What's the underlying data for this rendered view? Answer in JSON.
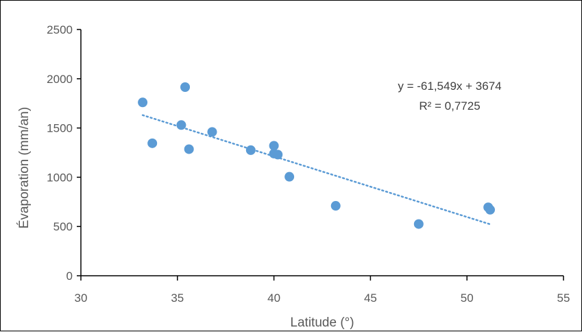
{
  "chart_data": {
    "type": "scatter",
    "title": "",
    "xlabel": "Latitude (°)",
    "ylabel": "Évaporation (mm/an)",
    "xlim": [
      30,
      55
    ],
    "ylim": [
      0,
      2500
    ],
    "xticks": [
      30,
      35,
      40,
      45,
      50,
      55
    ],
    "yticks": [
      0,
      500,
      1000,
      1500,
      2000,
      2500
    ],
    "xtick_labels": [
      "30",
      "35",
      "40",
      "45",
      "50",
      "55"
    ],
    "ytick_labels": [
      "0",
      "500",
      "1000",
      "1500",
      "2000",
      "2500"
    ],
    "grid": false,
    "legend": "none",
    "marker_color": "#5B9BD5",
    "trendline_color": "#5B9BD5",
    "series": [
      {
        "points": [
          {
            "x": 33.2,
            "y": 1760
          },
          {
            "x": 33.7,
            "y": 1345
          },
          {
            "x": 35.2,
            "y": 1530
          },
          {
            "x": 35.4,
            "y": 1915
          },
          {
            "x": 35.6,
            "y": 1285
          },
          {
            "x": 36.8,
            "y": 1460
          },
          {
            "x": 38.8,
            "y": 1275
          },
          {
            "x": 40.0,
            "y": 1320
          },
          {
            "x": 40.0,
            "y": 1240
          },
          {
            "x": 40.2,
            "y": 1230
          },
          {
            "x": 40.8,
            "y": 1005
          },
          {
            "x": 43.2,
            "y": 710
          },
          {
            "x": 47.5,
            "y": 525
          },
          {
            "x": 51.1,
            "y": 695
          },
          {
            "x": 51.2,
            "y": 670
          }
        ]
      }
    ],
    "trendline": {
      "type": "linear",
      "style": "dotted",
      "slope": -61.549,
      "intercept": 3674,
      "x_range": [
        33.2,
        51.2
      ]
    },
    "annotations": {
      "equation": "y = -61,549x + 3674",
      "r_squared": "R² = 0,7725"
    }
  }
}
